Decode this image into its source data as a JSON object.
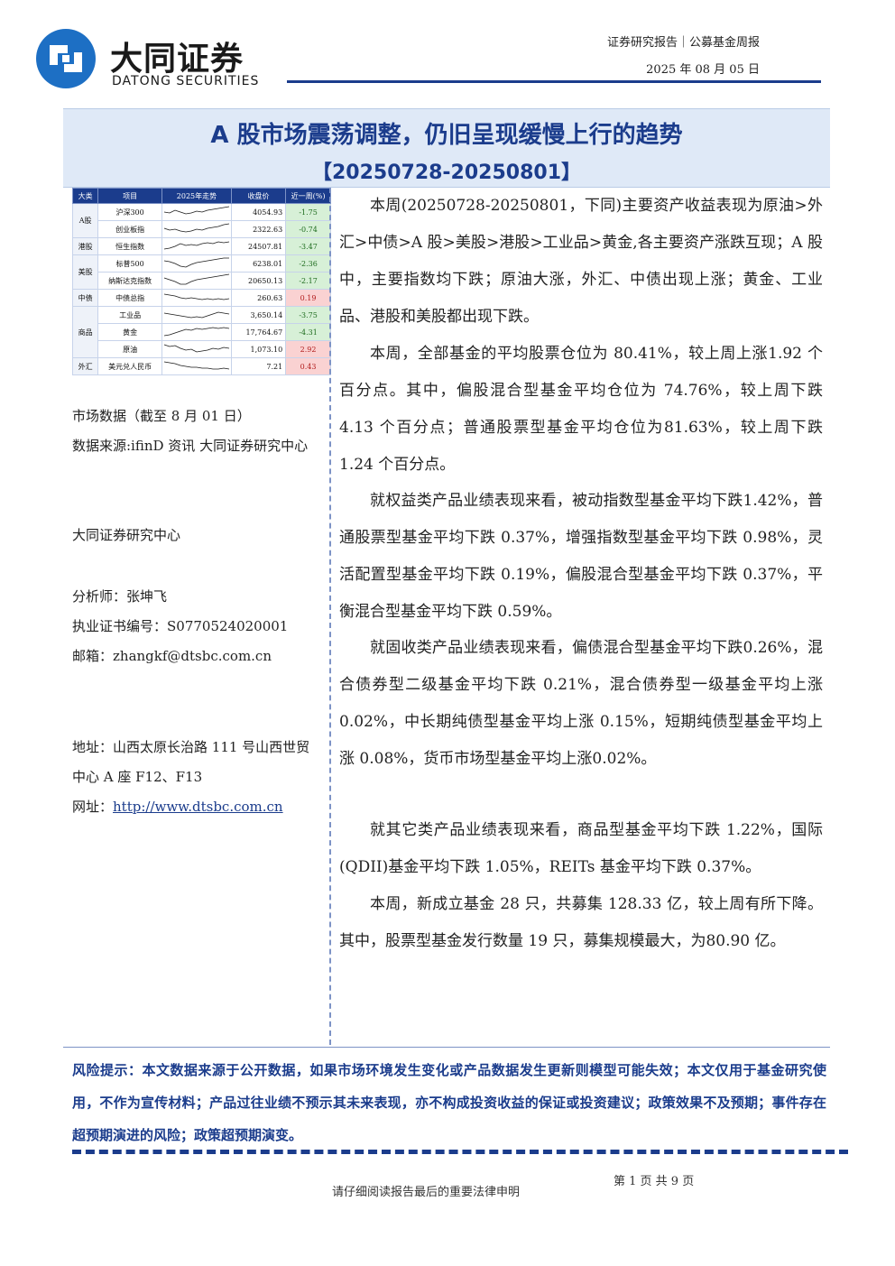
{
  "header": {
    "logo_cn": "大同证券",
    "logo_en": "DATONG SECURITIES",
    "report_type": "证券研究报告｜公募基金周报",
    "date": "2025 年 08 月 05 日"
  },
  "title": "A 股市场震荡调整，仍旧呈现缓慢上行的趋势",
  "subtitle": "【20250728-20250801】",
  "market_table": {
    "headers": [
      "大类",
      "项目",
      "2025年走势",
      "收盘价",
      "近一周(%)"
    ],
    "rows": [
      {
        "category": "A股",
        "name": "沪深300",
        "close": "4054.93",
        "change": "-1.75"
      },
      {
        "category": "",
        "name": "创业板指",
        "close": "2322.63",
        "change": "-0.74"
      },
      {
        "category": "港股",
        "name": "恒生指数",
        "close": "24507.81",
        "change": "-3.47"
      },
      {
        "category": "美股",
        "name": "标普500",
        "close": "6238.01",
        "change": "-2.36"
      },
      {
        "category": "",
        "name": "纳斯达克指数",
        "close": "20650.13",
        "change": "-2.17"
      },
      {
        "category": "中债",
        "name": "中债总指",
        "close": "260.63",
        "change": "0.19"
      },
      {
        "category": "商品",
        "name": "工业品",
        "close": "3,650.14",
        "change": "-3.75"
      },
      {
        "category": "",
        "name": "黄金",
        "close": "17,764.67",
        "change": "-4.31"
      },
      {
        "category": "",
        "name": "原油",
        "close": "1,073.10",
        "change": "2.92"
      },
      {
        "category": "外汇",
        "name": "美元兑人民币",
        "close": "7.21",
        "change": "0.43"
      }
    ]
  },
  "left": {
    "market_note": "市场数据（截至 8 月 01 日）",
    "source_note": "数据来源:ifinD 资讯 大同证券研究中心",
    "center": "大同证券研究中心",
    "analyst": "分析师：张坤飞",
    "license": "执业证书编号：S0770524020001",
    "email": "邮箱：zhangkf@dtsbc.com.cn",
    "address": "地址：山西太原长治路 111 号山西世贸中心 A 座 F12、F13",
    "website_label": "网址：",
    "website": "http://www.dtsbc.com.cn"
  },
  "body": {
    "p1": "本周(20250728-20250801，下同)主要资产收益表现为原油>外汇>中债>A 股>美股>港股>工业品>黄金,各主要资产涨跌互现；A 股中，主要指数均下跌；原油大涨，外汇、中债出现上涨；黄金、工业品、港股和美股都出现下跌。",
    "p2": "本周，全部基金的平均股票仓位为 80.41%，较上周上涨1.92 个百分点。其中，偏股混合型基金平均仓位为 74.76%，较上周下跌 4.13 个百分点；普通股票型基金平均仓位为81.63%，较上周下跌 1.24 个百分点。",
    "p3": "就权益类产品业绩表现来看，被动指数型基金平均下跌1.42%，普通股票型基金平均下跌 0.37%，增强指数型基金平均下跌 0.98%，灵活配置型基金平均下跌 0.19%，偏股混合型基金平均下跌 0.37%，平衡混合型基金平均下跌 0.59%。",
    "p4": "就固收类产品业绩表现来看，偏债混合型基金平均下跌0.26%，混合债券型二级基金平均下跌 0.21%，混合债券型一级基金平均上涨 0.02%，中长期纯债型基金平均上涨 0.15%，短期纯债型基金平均上涨 0.08%，货币市场型基金平均上涨0.02%。",
    "p5": "就其它类产品业绩表现来看，商品型基金平均下跌 1.22%，国际(QDII)基金平均下跌 1.05%，REITs 基金平均下跌 0.37%。",
    "p6": "本周，新成立基金 28 只，共募集 128.33 亿，较上周有所下降。其中，股票型基金发行数量 19 只，募集规模最大，为80.90 亿。"
  },
  "risk": "风险提示：本文数据来源于公开数据，如果市场环境发生变化或产品数据发生更新则模型可能失效；本文仅用于基金研究使用，不作为宣传材料；产品过往业绩不预示其未来表现，亦不构成投资收益的保证或投资建议；政策效果不及预期；事件存在超预期演进的风险；政策超预期演变。",
  "footer": {
    "note": "请仔细阅读报告最后的重要法律申明",
    "page": "第 1 页 共 9 页"
  },
  "colors": {
    "brand": "#1b3c8c",
    "logo_accent": "#1d6fc4",
    "negative": "#1d6b1d",
    "positive": "#b11c1c"
  }
}
